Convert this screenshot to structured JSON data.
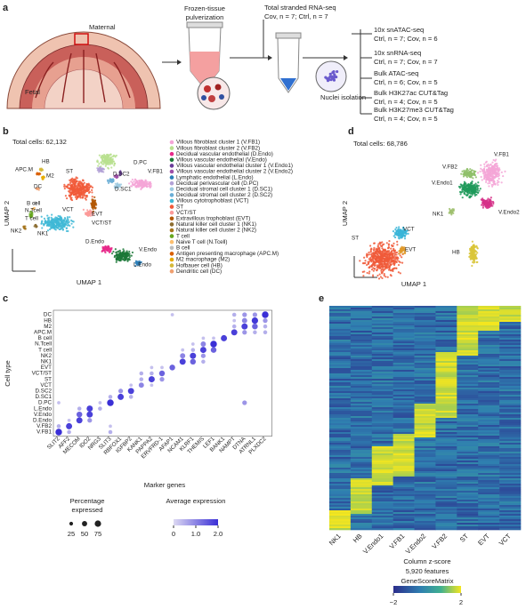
{
  "panel_a": {
    "label": "a",
    "maternal": "Maternal",
    "fetal": "Fetal",
    "pulverization": [
      "Frozen-tissue",
      "pulverization"
    ],
    "rna": {
      "title": "Total stranded RNA-seq",
      "n": "Cov, n = 7; Ctrl, n = 7"
    },
    "nuclei": "Nuclei isolation",
    "assays": [
      {
        "name": "10x snATAC-seq",
        "n": "Ctrl, n = 7; Cov, n = 6"
      },
      {
        "name": "10x snRNA-seq",
        "n": "Ctrl, n = 7; Cov, n = 7"
      },
      {
        "name": "Bulk ATAC-seq",
        "n": "Ctrl, n = 6; Cov, n = 5"
      },
      {
        "name": "Bulk H3K27ac CUT&Tag",
        "n": "Ctrl, n = 4; Cov, n = 5"
      },
      {
        "name": "Bulk H3K27me3 CUT&Tag",
        "n": "Ctrl, n = 4; Cov, n = 5"
      }
    ]
  },
  "panel_b": {
    "label": "b",
    "total": "Total cells: 62,132",
    "xlabel": "UMAP 1",
    "ylabel": "UMAP 2",
    "legend": [
      {
        "name": "Villous fibroblast cluster 1 (V.FB1)",
        "color": "#f4a6d7"
      },
      {
        "name": "Villous fibroblast cluster 2 (V.FB2)",
        "color": "#b9e08f"
      },
      {
        "name": "Decidual vascular endothelial (D.Endo)",
        "color": "#e7298a"
      },
      {
        "name": "Villous vascular endothelial (V.Endo)",
        "color": "#1b7837"
      },
      {
        "name": "Villous vascular endothelial cluster 1 (V.Endo1)",
        "color": "#6a3d9a"
      },
      {
        "name": "Villous vascular endothelial cluster 2 (V.Endo2)",
        "color": "#9e4fa8"
      },
      {
        "name": "Lymphatic endothelial (L.Endo)",
        "color": "#2c7fb8"
      },
      {
        "name": "Decidual perivascular cell (D.PC)",
        "color": "#b3a2d6"
      },
      {
        "name": "Decidual stromal cell cluster 1 (D.SC1)",
        "color": "#9ecae1"
      },
      {
        "name": "Decidual stromal cell cluster 2 (D.SC2)",
        "color": "#6baed6"
      },
      {
        "name": "Villous cytotrophoblast (VCT)",
        "color": "#3fb8d6"
      },
      {
        "name": "ST",
        "color": "#f15a3a"
      },
      {
        "name": "VCT/ST",
        "color": "#fb9a99"
      },
      {
        "name": "Extravillous trophoblast (EVT)",
        "color": "#b35806"
      },
      {
        "name": "Natural killer cell cluster 1 (NK1)",
        "color": "#8c6d31"
      },
      {
        "name": "Natural killer cell cluster 2 (NK2)",
        "color": "#a6761d"
      },
      {
        "name": "T cell",
        "color": "#66a61e"
      },
      {
        "name": "Naive T cell (N.Tcell)",
        "color": "#fdbf6f"
      },
      {
        "name": "B cell",
        "color": "#bdbdbd"
      },
      {
        "name": "Antigen presenting macrophage (APC.M)",
        "color": "#d95f02"
      },
      {
        "name": "M2 macrophage (M2)",
        "color": "#e6ab02"
      },
      {
        "name": "Hofbauer cell (HB)",
        "color": "#d4b83a"
      },
      {
        "name": "Dendritic cell (DC)",
        "color": "#f0a070"
      }
    ],
    "cluster_labels": [
      "APC.M",
      "HB",
      "M2",
      "DC",
      "B cell",
      "N.Tcell",
      "T cell",
      "NK2",
      "NK1",
      "VCT",
      "ST",
      "D.SC2",
      "D.SC1",
      "V.FB1",
      "D.PC",
      "EVT",
      "VCT/ST",
      "D.Endo",
      "V.Endo",
      "L.Endo"
    ]
  },
  "panel_c": {
    "label": "c",
    "ylabel": "Cell type",
    "xlabel": "Marker genes",
    "rows": [
      "DC",
      "HB",
      "M2",
      "APC.M",
      "B cell",
      "N.Tcell",
      "T cell",
      "NK2",
      "NK1",
      "EVT",
      "VCT/ST",
      "ST",
      "VCT",
      "D.SC2",
      "D.SC1",
      "D.PC",
      "L.Endo",
      "V.Endo",
      "D.Endo",
      "V.FB2",
      "V.FB1"
    ],
    "genes": [
      "SLIT2",
      "AFF2",
      "MECOM",
      "IDO2",
      "NRG3",
      "SLIT3",
      "RBFOX1",
      "IGFBP2",
      "KANK1",
      "PAPPA2",
      "ERVFRD-1",
      "AFAP1",
      "NCAM1",
      "KLRF1",
      "THEMIS",
      "LEF1",
      "BANK1",
      "NAMPT",
      "DTNA",
      "ATRNL1",
      "PLXDC2"
    ],
    "pct": [
      [
        0,
        0,
        0,
        0,
        0,
        0,
        0,
        0,
        0,
        0,
        0,
        20,
        0,
        0,
        0,
        0,
        0,
        30,
        40,
        40,
        80
      ],
      [
        0,
        0,
        0,
        0,
        0,
        0,
        0,
        0,
        0,
        0,
        0,
        0,
        0,
        0,
        0,
        0,
        0,
        20,
        50,
        75,
        40
      ],
      [
        0,
        0,
        0,
        0,
        0,
        0,
        0,
        0,
        0,
        0,
        0,
        0,
        0,
        0,
        0,
        0,
        0,
        30,
        70,
        60,
        30
      ],
      [
        0,
        0,
        0,
        0,
        0,
        0,
        0,
        0,
        0,
        0,
        0,
        0,
        0,
        0,
        0,
        0,
        0,
        70,
        40,
        30,
        30
      ],
      [
        0,
        0,
        0,
        0,
        0,
        0,
        0,
        0,
        0,
        0,
        0,
        0,
        0,
        0,
        20,
        20,
        70,
        0,
        0,
        0,
        0
      ],
      [
        0,
        0,
        0,
        0,
        0,
        0,
        0,
        0,
        0,
        0,
        0,
        0,
        0,
        20,
        50,
        80,
        0,
        0,
        0,
        0,
        0
      ],
      [
        0,
        0,
        0,
        0,
        0,
        0,
        0,
        0,
        0,
        0,
        0,
        0,
        20,
        30,
        70,
        60,
        0,
        0,
        0,
        0,
        0
      ],
      [
        0,
        0,
        0,
        0,
        0,
        0,
        0,
        0,
        0,
        0,
        0,
        0,
        50,
        70,
        40,
        0,
        0,
        0,
        0,
        0,
        0
      ],
      [
        0,
        0,
        0,
        0,
        0,
        0,
        0,
        0,
        0,
        0,
        0,
        0,
        70,
        60,
        30,
        0,
        0,
        0,
        0,
        0,
        0
      ],
      [
        0,
        0,
        0,
        0,
        0,
        0,
        0,
        0,
        0,
        20,
        20,
        60,
        0,
        0,
        0,
        0,
        0,
        0,
        0,
        0,
        0
      ],
      [
        0,
        0,
        0,
        0,
        0,
        0,
        0,
        0,
        30,
        30,
        60,
        0,
        0,
        0,
        0,
        0,
        0,
        0,
        0,
        0,
        0
      ],
      [
        0,
        0,
        0,
        0,
        0,
        0,
        0,
        0,
        30,
        70,
        40,
        0,
        0,
        0,
        0,
        0,
        0,
        0,
        0,
        0,
        0
      ],
      [
        0,
        0,
        0,
        0,
        0,
        0,
        0,
        20,
        50,
        20,
        0,
        0,
        0,
        0,
        0,
        0,
        0,
        0,
        0,
        0,
        0
      ],
      [
        0,
        0,
        0,
        0,
        0,
        0,
        40,
        70,
        0,
        0,
        0,
        0,
        0,
        0,
        0,
        0,
        0,
        0,
        0,
        0,
        0
      ],
      [
        0,
        0,
        0,
        0,
        0,
        30,
        70,
        30,
        0,
        0,
        0,
        0,
        0,
        0,
        0,
        0,
        0,
        0,
        0,
        0,
        0
      ],
      [
        20,
        0,
        0,
        0,
        20,
        80,
        0,
        0,
        0,
        0,
        0,
        0,
        0,
        0,
        0,
        0,
        0,
        0,
        40,
        0,
        0
      ],
      [
        0,
        0,
        30,
        70,
        30,
        0,
        0,
        0,
        0,
        0,
        0,
        0,
        0,
        0,
        0,
        0,
        0,
        0,
        0,
        0,
        0
      ],
      [
        0,
        0,
        60,
        70,
        0,
        0,
        0,
        0,
        0,
        0,
        0,
        0,
        0,
        0,
        0,
        0,
        0,
        0,
        0,
        0,
        0
      ],
      [
        0,
        20,
        70,
        40,
        0,
        0,
        0,
        0,
        0,
        0,
        0,
        0,
        0,
        0,
        0,
        0,
        0,
        0,
        0,
        0,
        0
      ],
      [
        30,
        70,
        0,
        0,
        0,
        20,
        0,
        0,
        0,
        0,
        0,
        0,
        0,
        0,
        0,
        0,
        0,
        0,
        0,
        0,
        0
      ],
      [
        80,
        30,
        0,
        0,
        0,
        30,
        0,
        0,
        0,
        0,
        0,
        0,
        0,
        0,
        0,
        0,
        0,
        0,
        0,
        0,
        0
      ]
    ],
    "expr": [
      [
        0,
        0,
        0,
        0,
        0,
        0,
        0,
        0,
        0,
        0,
        0,
        0.3,
        0,
        0,
        0,
        0,
        0,
        0.5,
        0.8,
        0.8,
        2.0
      ],
      [
        0,
        0,
        0,
        0,
        0,
        0,
        0,
        0,
        0,
        0,
        0,
        0,
        0,
        0,
        0,
        0,
        0,
        0.3,
        1.0,
        1.9,
        0.8
      ],
      [
        0,
        0,
        0,
        0,
        0,
        0,
        0,
        0,
        0,
        0,
        0,
        0,
        0,
        0,
        0,
        0,
        0,
        0.5,
        1.8,
        1.4,
        0.5
      ],
      [
        0,
        0,
        0,
        0,
        0,
        0,
        0,
        0,
        0,
        0,
        0,
        0,
        0,
        0,
        0,
        0,
        0,
        1.8,
        0.8,
        0.5,
        0.5
      ],
      [
        0,
        0,
        0,
        0,
        0,
        0,
        0,
        0,
        0,
        0,
        0,
        0,
        0,
        0,
        0.3,
        0.3,
        1.8,
        0,
        0,
        0,
        0
      ],
      [
        0,
        0,
        0,
        0,
        0,
        0,
        0,
        0,
        0,
        0,
        0,
        0,
        0,
        0.3,
        1.0,
        2.0,
        0,
        0,
        0,
        0,
        0
      ],
      [
        0,
        0,
        0,
        0,
        0,
        0,
        0,
        0,
        0,
        0,
        0,
        0,
        0.3,
        0.5,
        1.8,
        1.4,
        0,
        0,
        0,
        0,
        0
      ],
      [
        0,
        0,
        0,
        0,
        0,
        0,
        0,
        0,
        0,
        0,
        0,
        0,
        1.0,
        1.8,
        0.8,
        0,
        0,
        0,
        0,
        0,
        0
      ],
      [
        0,
        0,
        0,
        0,
        0,
        0,
        0,
        0,
        0,
        0,
        0,
        0,
        1.8,
        1.4,
        0.5,
        0,
        0,
        0,
        0,
        0,
        0
      ],
      [
        0,
        0,
        0,
        0,
        0,
        0,
        0,
        0,
        0,
        0.3,
        0.3,
        1.4,
        0,
        0,
        0,
        0,
        0,
        0,
        0,
        0,
        0
      ],
      [
        0,
        0,
        0,
        0,
        0,
        0,
        0,
        0,
        0.5,
        0.5,
        1.4,
        0,
        0,
        0,
        0,
        0,
        0,
        0,
        0,
        0,
        0
      ],
      [
        0,
        0,
        0,
        0,
        0,
        0,
        0,
        0,
        0.5,
        1.8,
        0.8,
        0,
        0,
        0,
        0,
        0,
        0,
        0,
        0,
        0,
        0
      ],
      [
        0,
        0,
        0,
        0,
        0,
        0,
        0,
        0.3,
        1.0,
        0.3,
        0,
        0,
        0,
        0,
        0,
        0,
        0,
        0,
        0,
        0,
        0
      ],
      [
        0,
        0,
        0,
        0,
        0,
        0,
        0.8,
        1.8,
        0,
        0,
        0,
        0,
        0,
        0,
        0,
        0,
        0,
        0,
        0,
        0,
        0
      ],
      [
        0,
        0,
        0,
        0,
        0,
        0.5,
        1.8,
        0.5,
        0,
        0,
        0,
        0,
        0,
        0,
        0,
        0,
        0,
        0,
        0,
        0,
        0
      ],
      [
        0.3,
        0,
        0,
        0,
        0.3,
        2.0,
        0,
        0,
        0,
        0,
        0,
        0,
        0,
        0,
        0,
        0,
        0,
        0,
        0.8,
        0,
        0
      ],
      [
        0,
        0,
        0.5,
        1.8,
        0.5,
        0,
        0,
        0,
        0,
        0,
        0,
        0,
        0,
        0,
        0,
        0,
        0,
        0,
        0,
        0,
        0
      ],
      [
        0,
        0,
        1.4,
        1.8,
        0,
        0,
        0,
        0,
        0,
        0,
        0,
        0,
        0,
        0,
        0,
        0,
        0,
        0,
        0,
        0,
        0
      ],
      [
        0,
        0.3,
        1.8,
        0.8,
        0,
        0,
        0,
        0,
        0,
        0,
        0,
        0,
        0,
        0,
        0,
        0,
        0,
        0,
        0,
        0,
        0
      ],
      [
        0.5,
        1.8,
        0,
        0,
        0,
        0.3,
        0,
        0,
        0,
        0,
        0,
        0,
        0,
        0,
        0,
        0,
        0,
        0,
        0,
        0,
        0
      ],
      [
        2.0,
        0.5,
        0,
        0,
        0,
        0.5,
        0,
        0,
        0,
        0,
        0,
        0,
        0,
        0,
        0,
        0,
        0,
        0,
        0,
        0,
        0
      ]
    ],
    "size_title": [
      "Percentage",
      "expressed"
    ],
    "size_legend": [
      25,
      50,
      75
    ],
    "color_title": "Average expression",
    "clim": [
      0,
      2
    ],
    "color_ticks": [
      0,
      {
        "value": 1,
        "label": "1.0"
      },
      {
        "value": 2,
        "label": "2.0"
      }
    ]
  },
  "panel_d": {
    "label": "d",
    "total": "Total cells: 68,786",
    "xlabel": "UMAP 1",
    "ylabel": "UMAP 2",
    "clusters": [
      {
        "name": "V.FB1",
        "color": "#f4a6d7"
      },
      {
        "name": "V.FB2",
        "color": "#8fc06a"
      },
      {
        "name": "V.Endo1",
        "color": "#1f9a5a"
      },
      {
        "name": "NK1",
        "color": "#9fbf6f"
      },
      {
        "name": "V.Endo2",
        "color": "#d6338a"
      },
      {
        "name": "VCT",
        "color": "#3ab5d8"
      },
      {
        "name": "ST",
        "color": "#f05a3a"
      },
      {
        "name": "EVT",
        "color": "#e09a2a"
      },
      {
        "name": "HB",
        "color": "#d9c63a"
      }
    ]
  },
  "panel_e": {
    "label": "e",
    "columns": [
      "NK1",
      "HB",
      "V.Endo1",
      "V.FB1",
      "V.Endo2",
      "V.FB2",
      "ST",
      "EVT",
      "VCT"
    ],
    "colorbar_title": [
      "Column z-score",
      "5,920 features",
      "GeneScoreMatrix"
    ],
    "clim": [
      -2,
      2
    ],
    "color_ticks": [
      {
        "value": -2,
        "label": "−2"
      },
      2
    ]
  }
}
